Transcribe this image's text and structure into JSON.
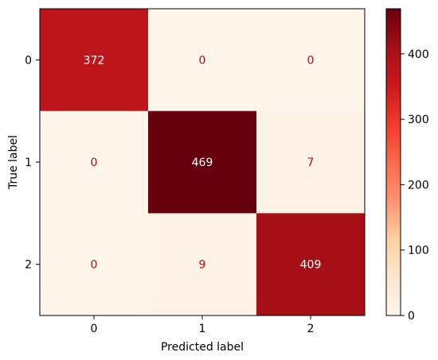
{
  "chart_data": {
    "type": "heatmap",
    "title": "",
    "xlabel": "Predicted label",
    "ylabel": "True label",
    "x_tick_labels": [
      "0",
      "1",
      "2"
    ],
    "y_tick_labels": [
      "0",
      "1",
      "2"
    ],
    "matrix": [
      [
        372,
        0,
        0
      ],
      [
        0,
        469,
        7
      ],
      [
        0,
        9,
        409
      ]
    ],
    "colormap": "Reds",
    "color_range": [
      0,
      469
    ],
    "colorbar_ticks": [
      0,
      100,
      200,
      300,
      400
    ],
    "colorbar_tick_labels": [
      "0",
      "100",
      "200",
      "300",
      "400"
    ]
  },
  "colors": {
    "colormap_stops": [
      "#fff5eb",
      "#fee6ce",
      "#fdd0a2",
      "#fc9272",
      "#fb6a4a",
      "#ef3b2c",
      "#cb181d",
      "#a50f15",
      "#67000d"
    ],
    "light_text": "#ffffff",
    "dark_text": "#b01010",
    "axis": "#000000"
  }
}
